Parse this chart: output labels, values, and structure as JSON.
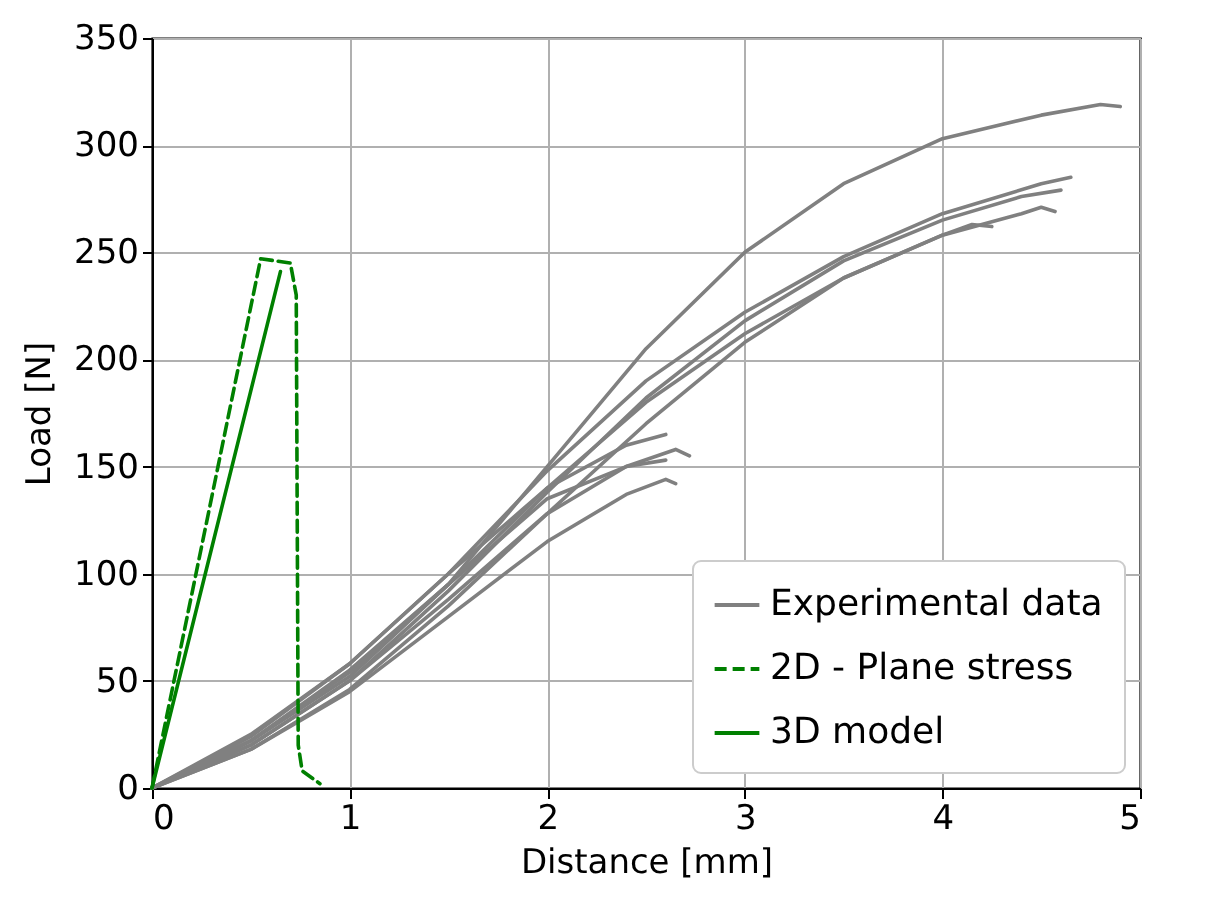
{
  "chart_data": {
    "type": "line",
    "xlabel": "Distance [mm]",
    "ylabel": "Load [N]",
    "xlim": [
      0,
      5
    ],
    "xticks": [
      0,
      1,
      2,
      3,
      4,
      5
    ],
    "ylim": [
      0,
      350
    ],
    "yticks": [
      0,
      50,
      100,
      150,
      200,
      250,
      300,
      350
    ],
    "grid": true,
    "legend": "bottom right",
    "marker": "none",
    "series": [
      {
        "name": "Experimental data",
        "color": "#808080",
        "line_style": "solid",
        "x": [
          0,
          0.5,
          1,
          1.5,
          2,
          2.5,
          3,
          3.5,
          4,
          4.5,
          4.8,
          4.9
        ],
        "values": [
          0,
          22,
          52,
          95,
          150,
          205,
          250,
          282,
          303,
          314,
          319,
          318
        ]
      },
      {
        "color": "#808080",
        "line_style": "solid",
        "x": [
          0,
          0.5,
          1,
          1.5,
          2,
          2.5,
          3,
          3.5,
          4,
          4.5,
          4.65
        ],
        "values": [
          0,
          25,
          58,
          100,
          148,
          190,
          222,
          248,
          268,
          282,
          285
        ]
      },
      {
        "color": "#808080",
        "line_style": "solid",
        "x": [
          0,
          0.5,
          1,
          1.5,
          2,
          2.5,
          3,
          3.5,
          4,
          4.4,
          4.6
        ],
        "values": [
          0,
          20,
          50,
          92,
          138,
          182,
          218,
          246,
          265,
          276,
          279
        ]
      },
      {
        "color": "#808080",
        "line_style": "solid",
        "x": [
          0,
          0.5,
          1,
          1.5,
          2,
          2.5,
          3,
          3.5,
          4,
          4.4,
          4.5,
          4.57
        ],
        "values": [
          0,
          18,
          46,
          85,
          128,
          170,
          208,
          238,
          258,
          268,
          271,
          269
        ]
      },
      {
        "color": "#808080",
        "line_style": "solid",
        "x": [
          0,
          0.5,
          1,
          1.5,
          2,
          2.5,
          3,
          3.5,
          4,
          4.15,
          4.25
        ],
        "values": [
          0,
          22,
          54,
          95,
          140,
          180,
          212,
          238,
          258,
          263,
          262
        ]
      },
      {
        "color": "#808080",
        "line_style": "solid",
        "x": [
          0,
          0.5,
          1,
          1.5,
          2,
          2.4,
          2.6
        ],
        "values": [
          0,
          24,
          58,
          100,
          140,
          160,
          165
        ]
      },
      {
        "color": "#808080",
        "line_style": "solid",
        "x": [
          0,
          0.5,
          1,
          1.5,
          2,
          2.4,
          2.65,
          2.72
        ],
        "values": [
          0,
          20,
          50,
          88,
          128,
          150,
          158,
          155
        ]
      },
      {
        "color": "#808080",
        "line_style": "solid",
        "x": [
          0,
          0.5,
          1,
          1.5,
          2,
          2.4,
          2.6,
          2.65
        ],
        "values": [
          0,
          18,
          45,
          80,
          115,
          137,
          144,
          142
        ]
      },
      {
        "color": "#808080",
        "line_style": "solid",
        "x": [
          0,
          0.5,
          1,
          1.5,
          2,
          2.4,
          2.6
        ],
        "values": [
          0,
          22,
          55,
          95,
          135,
          150,
          153
        ]
      },
      {
        "name": "2D - Plane stress",
        "color": "#008000",
        "line_style": "dashed",
        "x": [
          0,
          0.55,
          0.7,
          0.73,
          0.74,
          0.76,
          0.85
        ],
        "values": [
          0,
          247,
          245,
          230,
          20,
          8,
          2
        ]
      },
      {
        "name": "3D model",
        "color": "#008000",
        "line_style": "solid",
        "x": [
          0,
          0.65
        ],
        "values": [
          0,
          241
        ]
      }
    ]
  }
}
